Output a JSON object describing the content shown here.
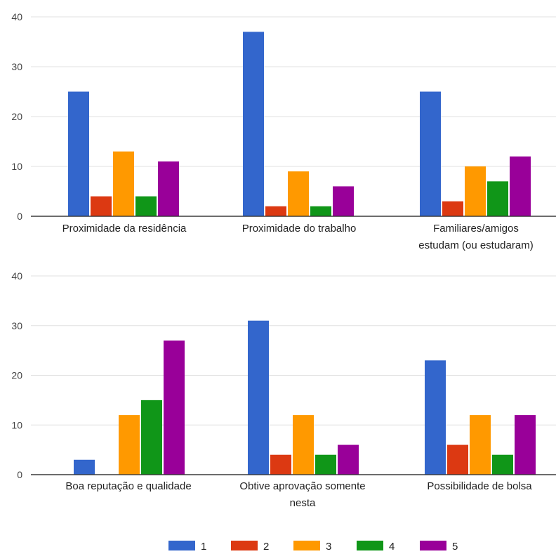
{
  "colors": [
    "#3366cc",
    "#dc3912",
    "#ff9900",
    "#109618",
    "#990099"
  ],
  "chart_data": [
    {
      "type": "bar",
      "categories": [
        [
          "Proximidade da residência"
        ],
        [
          "Proximidade do trabalho"
        ],
        [
          "Familiares/amigos",
          "estudam (ou estudaram)"
        ]
      ],
      "series": [
        {
          "name": "1",
          "values": [
            25,
            37,
            25
          ]
        },
        {
          "name": "2",
          "values": [
            4,
            2,
            3
          ]
        },
        {
          "name": "3",
          "values": [
            13,
            9,
            10
          ]
        },
        {
          "name": "4",
          "values": [
            4,
            2,
            7
          ]
        },
        {
          "name": "5",
          "values": [
            11,
            6,
            12
          ]
        }
      ],
      "yticks": [
        "0",
        "10",
        "20",
        "30",
        "40"
      ],
      "ylim": [
        0,
        40
      ],
      "grid": true
    },
    {
      "type": "bar",
      "categories": [
        [
          "Boa reputação e qualidade"
        ],
        [
          "Obtive aprovação somente",
          "nesta"
        ],
        [
          "Possibilidade de bolsa"
        ]
      ],
      "series": [
        {
          "name": "1",
          "values": [
            3,
            31,
            23
          ]
        },
        {
          "name": "2",
          "values": [
            0,
            4,
            6
          ]
        },
        {
          "name": "3",
          "values": [
            12,
            12,
            12
          ]
        },
        {
          "name": "4",
          "values": [
            15,
            4,
            4
          ]
        },
        {
          "name": "5",
          "values": [
            27,
            6,
            12
          ]
        }
      ],
      "yticks": [
        "0",
        "10",
        "20",
        "30",
        "40"
      ],
      "ylim": [
        0,
        40
      ],
      "grid": true
    }
  ],
  "legend": {
    "position": "bottom",
    "items": [
      "1",
      "2",
      "3",
      "4",
      "5"
    ]
  }
}
